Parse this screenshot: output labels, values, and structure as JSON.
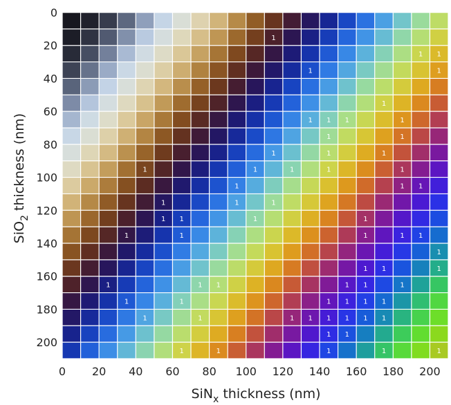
{
  "chart_data": {
    "type": "heatmap",
    "title": "",
    "xlabel": {
      "main": "SiN",
      "sub": "x",
      "rest": " thickness (nm)"
    },
    "ylabel": {
      "main": "SiO",
      "sub": "2",
      "rest": " thickness (nm)"
    },
    "x_ticks": [
      0,
      20,
      40,
      60,
      80,
      100,
      120,
      140,
      160,
      180,
      200
    ],
    "y_ticks": [
      0,
      20,
      40,
      60,
      80,
      100,
      120,
      140,
      160,
      180,
      200
    ],
    "xlim": [
      0,
      210
    ],
    "ylim": [
      0,
      210
    ],
    "cell_size_nm": 10,
    "grid": true,
    "cell_label_text": "1",
    "annotated_cells": [
      [
        115,
        15
      ],
      [
        195,
        25
      ],
      [
        205,
        25
      ],
      [
        135,
        35
      ],
      [
        205,
        35
      ],
      [
        175,
        55
      ],
      [
        135,
        65
      ],
      [
        145,
        65
      ],
      [
        155,
        65
      ],
      [
        185,
        65
      ],
      [
        145,
        75
      ],
      [
        185,
        75
      ],
      [
        115,
        85
      ],
      [
        145,
        85
      ],
      [
        175,
        85
      ],
      [
        45,
        95
      ],
      [
        105,
        95
      ],
      [
        125,
        95
      ],
      [
        145,
        95
      ],
      [
        185,
        95
      ],
      [
        95,
        105
      ],
      [
        185,
        105
      ],
      [
        195,
        105
      ],
      [
        55,
        115
      ],
      [
        95,
        115
      ],
      [
        115,
        115
      ],
      [
        55,
        125
      ],
      [
        65,
        125
      ],
      [
        105,
        125
      ],
      [
        165,
        125
      ],
      [
        35,
        135
      ],
      [
        65,
        135
      ],
      [
        165,
        135
      ],
      [
        185,
        135
      ],
      [
        195,
        135
      ],
      [
        205,
        145
      ],
      [
        165,
        155
      ],
      [
        175,
        155
      ],
      [
        205,
        155
      ],
      [
        25,
        165
      ],
      [
        75,
        165
      ],
      [
        85,
        165
      ],
      [
        155,
        165
      ],
      [
        165,
        165
      ],
      [
        185,
        165
      ],
      [
        35,
        175
      ],
      [
        65,
        175
      ],
      [
        145,
        175
      ],
      [
        155,
        175
      ],
      [
        165,
        175
      ],
      [
        175,
        175
      ],
      [
        45,
        185
      ],
      [
        75,
        185
      ],
      [
        125,
        185
      ],
      [
        135,
        185
      ],
      [
        145,
        185
      ],
      [
        155,
        185
      ],
      [
        165,
        185
      ],
      [
        175,
        185
      ],
      [
        145,
        195
      ],
      [
        155,
        195
      ],
      [
        65,
        205
      ],
      [
        85,
        205
      ],
      [
        145,
        205
      ],
      [
        175,
        205
      ],
      [
        205,
        205
      ]
    ]
  }
}
